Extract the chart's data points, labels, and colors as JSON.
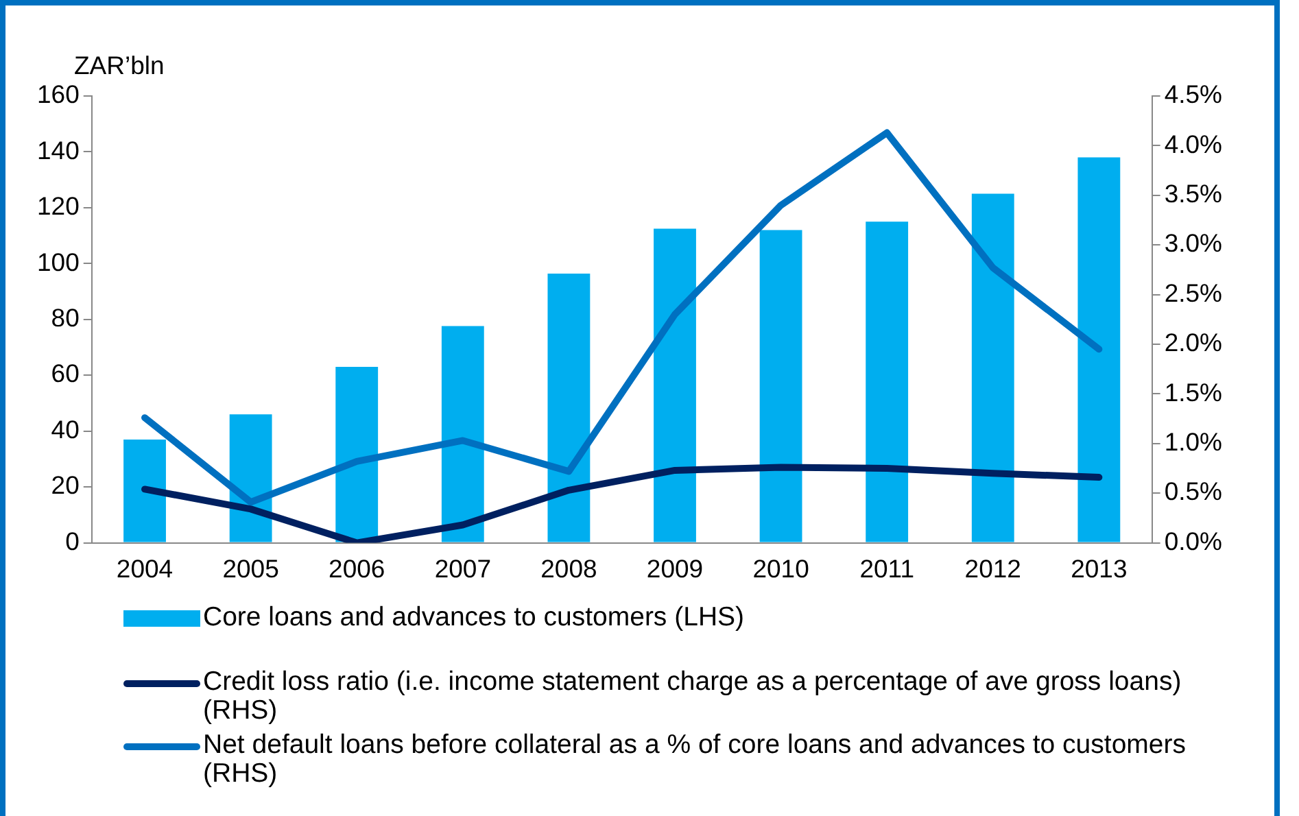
{
  "chart_data": {
    "type": "bar",
    "ylabel": "ZAR’bln",
    "categories": [
      "2004",
      "2005",
      "2006",
      "2007",
      "2008",
      "2009",
      "2010",
      "2011",
      "2012",
      "2013"
    ],
    "series": [
      {
        "name": "Core loans and advances to customers (LHS)",
        "color": "#00aeef",
        "values": [
          37,
          46,
          63,
          77.6,
          96.4,
          112.5,
          112,
          115,
          125,
          138
        ]
      },
      {
        "name": "Credit loss ratio (i.e. income statement charge as a percentage of ave gross loans) (RHS)",
        "type": "line",
        "axis": "y2",
        "color": "#002060",
        "values": [
          0.54,
          0.34,
          0,
          0.18,
          0.53,
          0.73,
          0.76,
          0.75,
          0.7,
          0.66
        ]
      },
      {
        "name": "Net default loans before collateral as a % of core loans and advances to customers (RHS)",
        "type": "line",
        "axis": "y2",
        "color": "#0070c0",
        "values": [
          1.26,
          0.41,
          0.82,
          1.03,
          0.72,
          2.3,
          3.4,
          4.13,
          2.77,
          1.95
        ]
      }
    ],
    "ylim": [
      0,
      160
    ],
    "yticks": [
      0,
      20,
      40,
      60,
      80,
      100,
      120,
      140,
      160
    ],
    "y2lim": [
      0,
      4.5
    ],
    "y2ticks": [
      {
        "value": 0,
        "label": "0.0%"
      },
      {
        "value": 0.5,
        "label": "0.5%"
      },
      {
        "value": 1,
        "label": "1.0%"
      },
      {
        "value": 1.5,
        "label": "1.5%"
      },
      {
        "value": 2,
        "label": "2.0%"
      },
      {
        "value": 2.5,
        "label": "2.5%"
      },
      {
        "value": 3,
        "label": "3.0%"
      },
      {
        "value": 3.5,
        "label": "3.5%"
      },
      {
        "value": 4,
        "label": "4.0%"
      },
      {
        "value": 4.5,
        "label": "4.5%"
      }
    ],
    "grid": false,
    "legend": "bottom",
    "marker": "none",
    "line_style": "solid"
  }
}
